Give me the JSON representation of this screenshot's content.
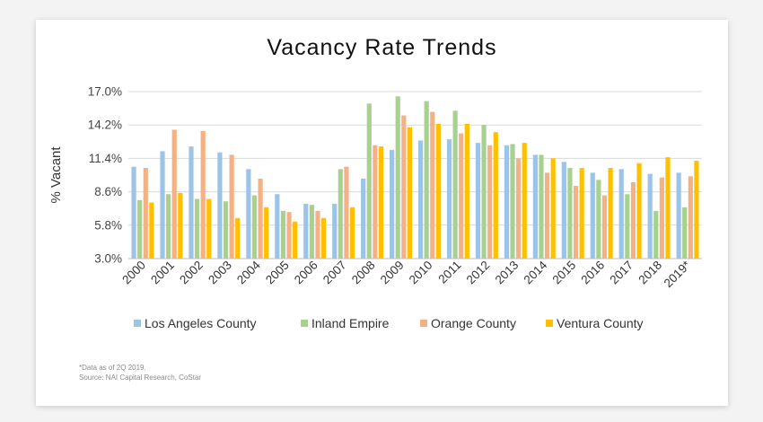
{
  "chart_data": {
    "type": "bar",
    "title": "Vacancy Rate Trends",
    "ylabel": "% Vacant",
    "xlabel": "",
    "ylim": [
      3.0,
      17.0
    ],
    "yticks": [
      "3.0%",
      "5.8%",
      "8.6%",
      "11.4%",
      "14.2%",
      "17.0%"
    ],
    "ytick_values": [
      3.0,
      5.8,
      8.6,
      11.4,
      14.2,
      17.0
    ],
    "grid": true,
    "legend_position": "bottom",
    "categories": [
      "2000",
      "2001",
      "2002",
      "2003",
      "2004",
      "2005",
      "2006",
      "2007",
      "2008",
      "2009",
      "2010",
      "2011",
      "2012",
      "2013",
      "2014",
      "2015",
      "2016",
      "2017",
      "2018",
      "2019*"
    ],
    "series": [
      {
        "name": "Los Angeles County",
        "color": "#9dc3e6",
        "values": [
          10.7,
          12.0,
          12.4,
          11.9,
          10.5,
          8.4,
          7.6,
          7.6,
          9.7,
          12.1,
          12.9,
          13.0,
          12.7,
          12.5,
          11.7,
          11.1,
          10.2,
          10.5,
          10.1,
          10.2
        ]
      },
      {
        "name": "Inland Empire",
        "color": "#a9d18e",
        "values": [
          7.9,
          8.4,
          8.0,
          7.8,
          8.3,
          7.0,
          7.5,
          10.5,
          16.0,
          16.6,
          16.2,
          15.4,
          14.2,
          12.6,
          11.7,
          10.6,
          9.6,
          8.4,
          7.0,
          7.3
        ]
      },
      {
        "name": "Orange County",
        "color": "#f4b183",
        "values": [
          10.6,
          13.8,
          13.7,
          11.7,
          9.7,
          6.9,
          7.0,
          10.7,
          12.5,
          15.0,
          15.3,
          13.5,
          12.5,
          11.4,
          10.2,
          9.1,
          8.3,
          9.4,
          9.8,
          9.9
        ]
      },
      {
        "name": "Ventura County",
        "color": "#ffc000",
        "values": [
          7.7,
          8.5,
          8.0,
          6.4,
          7.3,
          6.1,
          6.4,
          7.3,
          12.4,
          14.0,
          14.3,
          14.3,
          13.6,
          12.7,
          11.4,
          10.6,
          10.6,
          11.0,
          11.5,
          11.2
        ]
      }
    ]
  },
  "footnote": {
    "line1": "*Data as of 2Q 2019.",
    "line2": "Source: NAI Capital Research, CoStar"
  }
}
